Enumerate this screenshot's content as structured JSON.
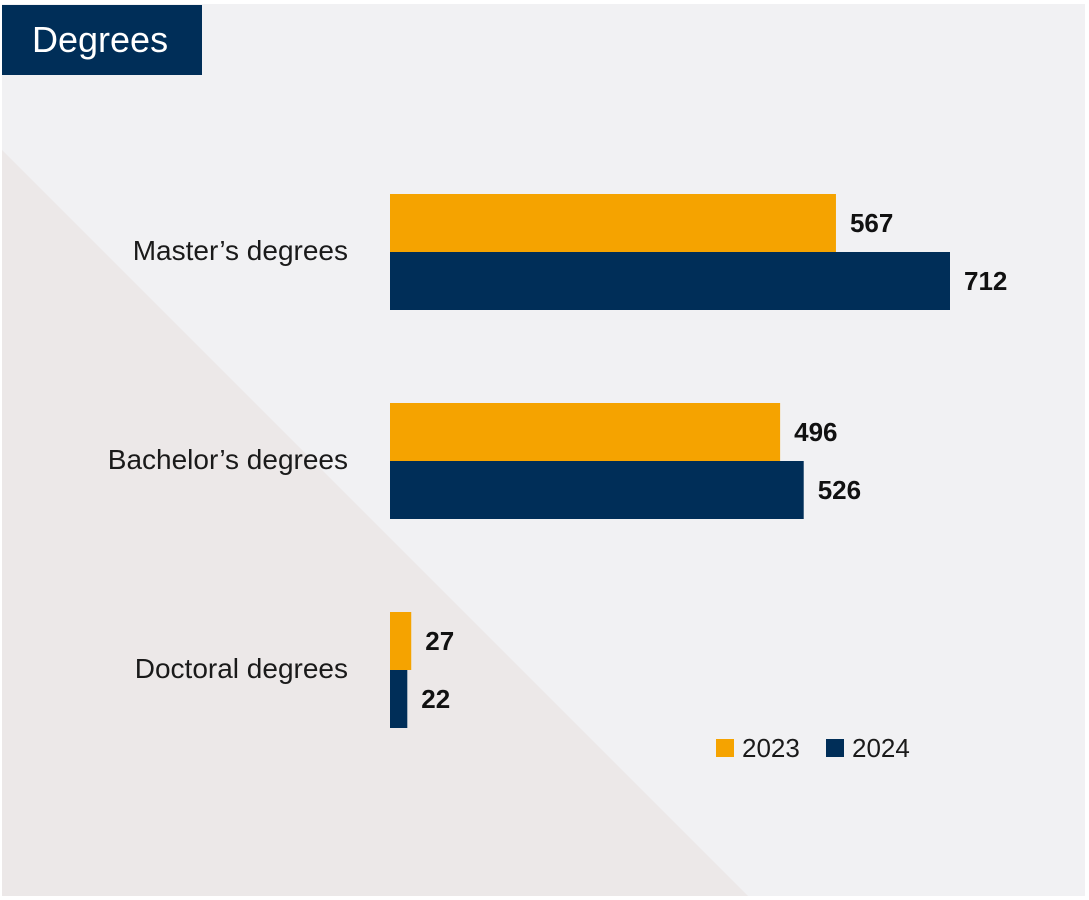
{
  "title": "Degrees",
  "colors": {
    "series_2023": "#f5a300",
    "series_2024": "#002e58",
    "background": "#f1f1f3",
    "diagonal": "#ece8e8"
  },
  "chart_data": {
    "type": "bar",
    "orientation": "horizontal",
    "title": "Degrees",
    "categories": [
      "Master’s degrees",
      "Bachelor’s degrees",
      "Doctoral degrees"
    ],
    "series": [
      {
        "name": "2023",
        "values": [
          567,
          496,
          27
        ],
        "color": "#f5a300"
      },
      {
        "name": "2024",
        "values": [
          712,
          526,
          22
        ],
        "color": "#002e58"
      }
    ],
    "xlim": [
      0,
      1000
    ],
    "grid": false,
    "legend_position": "bottom-right",
    "data_labels": true
  }
}
